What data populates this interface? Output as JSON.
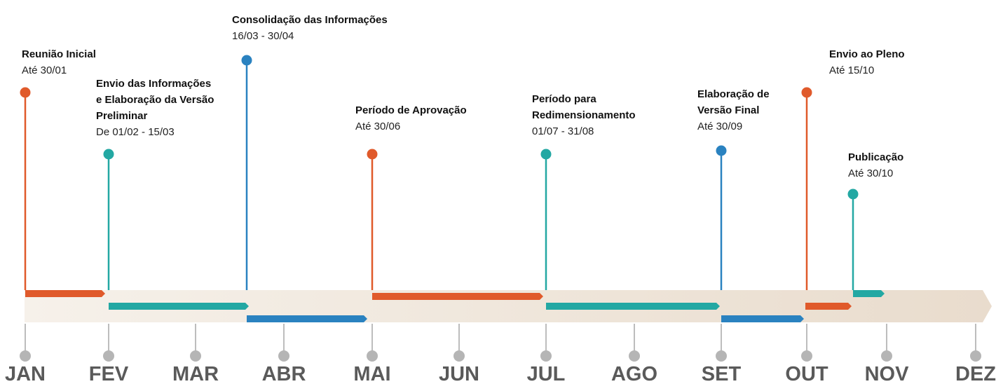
{
  "months": [
    "JAN",
    "FEV",
    "MAR",
    "ABR",
    "MAI",
    "JUN",
    "JUL",
    "AGO",
    "SET",
    "OUT",
    "NOV",
    "DEZ"
  ],
  "events": [
    {
      "title_lines": [
        "Reunião Inicial"
      ],
      "date": "Até 30/01"
    },
    {
      "title_lines": [
        "Envio das Informações",
        "e Elaboração da Versão",
        "Preliminar"
      ],
      "date": "De 01/02 - 15/03"
    },
    {
      "title_lines": [
        "Consolidação das Informações"
      ],
      "date": "16/03 - 30/04"
    },
    {
      "title_lines": [
        "Período de Aprovação"
      ],
      "date": "Até 30/06"
    },
    {
      "title_lines": [
        "Período para",
        "Redimensionamento"
      ],
      "date": "01/07 - 31/08"
    },
    {
      "title_lines": [
        "Elaboração de",
        "Versão Final"
      ],
      "date": "Até 30/09"
    },
    {
      "title_lines": [
        "Envio ao Pleno"
      ],
      "date": "Até 15/10"
    },
    {
      "title_lines": [
        "Publicação"
      ],
      "date": "Até 30/10"
    }
  ]
}
